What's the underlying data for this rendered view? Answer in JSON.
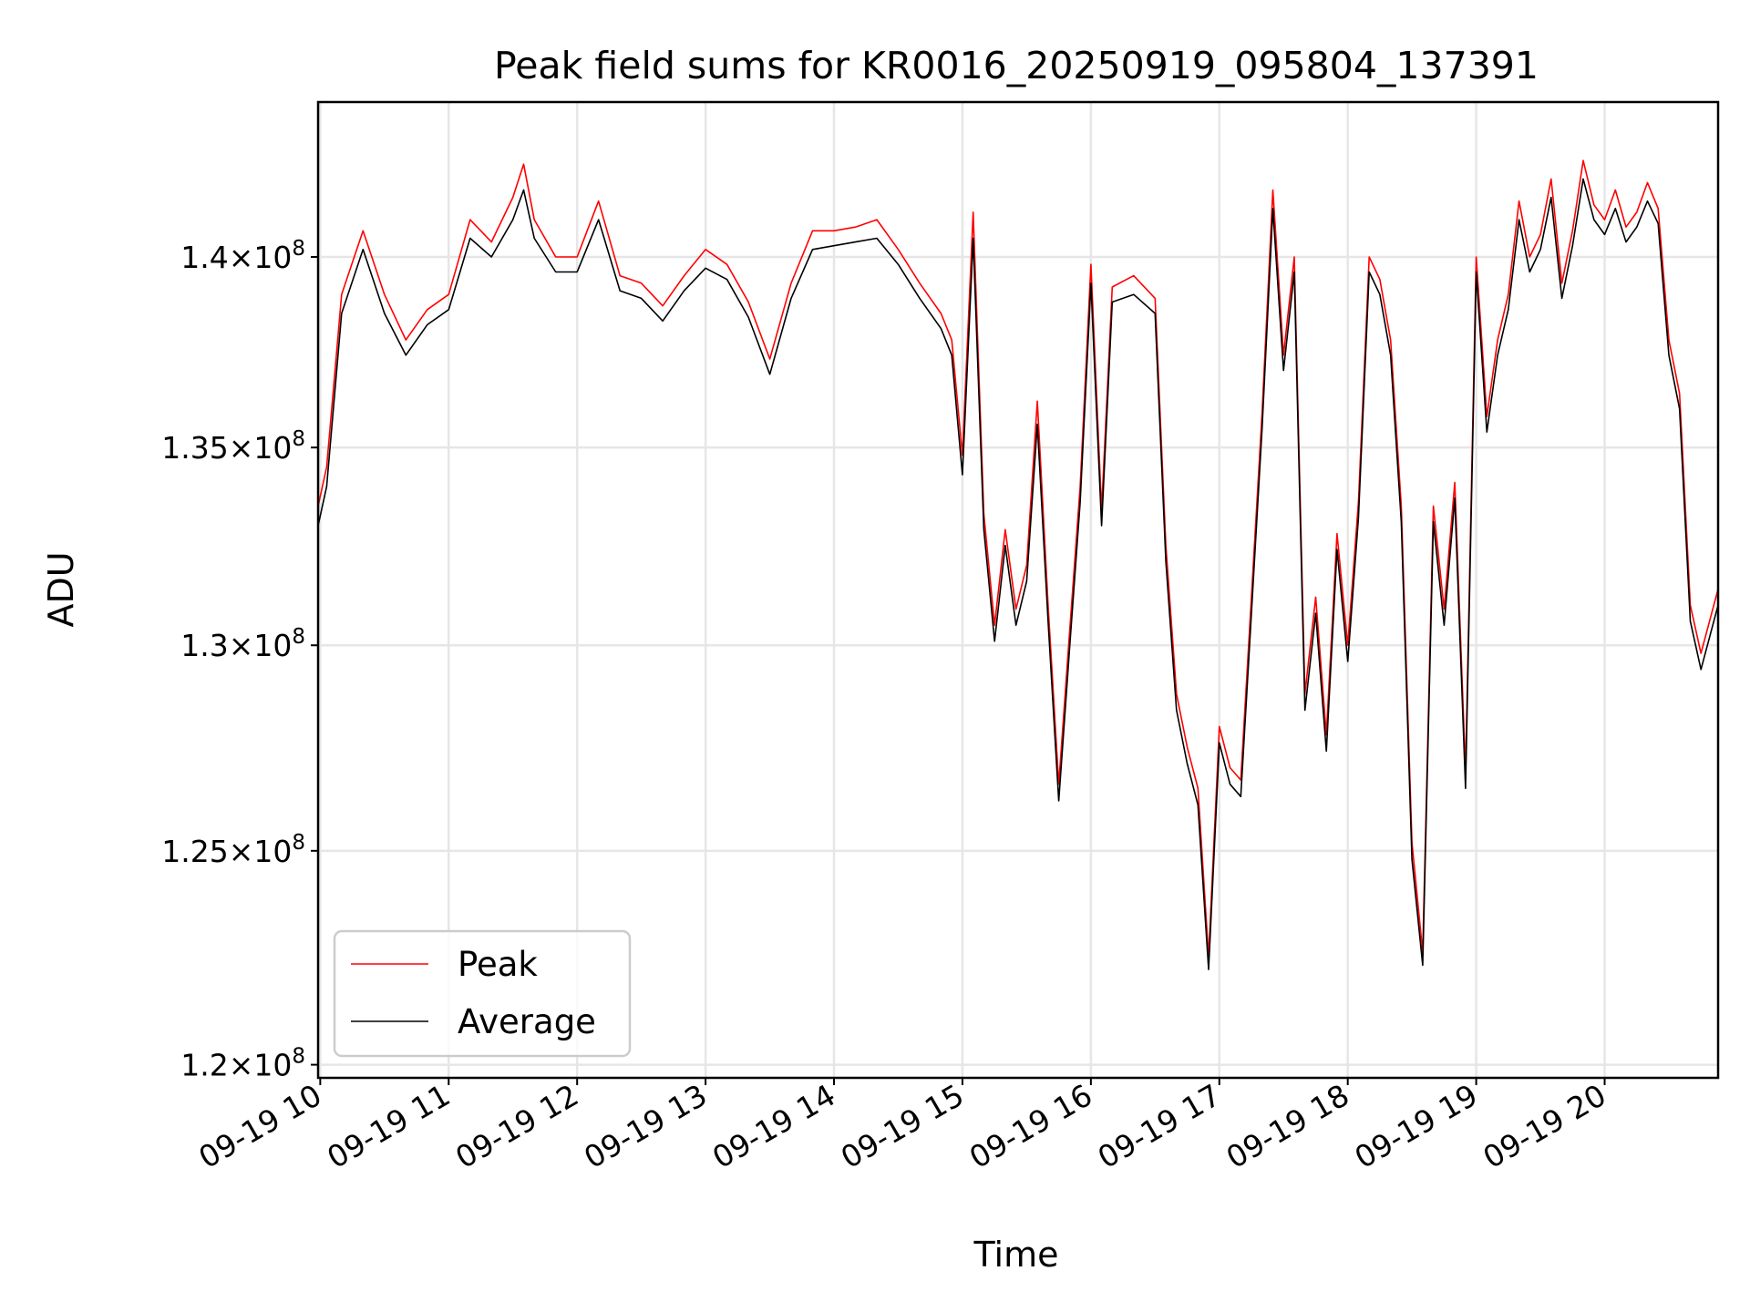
{
  "chart_data": {
    "type": "line",
    "title": "Peak field sums for KR0016_20250919_095804_137391",
    "xlabel": "Time",
    "ylabel": "ADU",
    "y_scale": "log",
    "grid": true,
    "legend_position": "lower-left",
    "xlim": [
      "2025-09-19 09:59",
      "2025-09-19 20:53"
    ],
    "ylim": [
      119700000,
      144200000
    ],
    "x_ticks": [
      "09-19 10",
      "09-19 11",
      "09-19 12",
      "09-19 13",
      "09-19 14",
      "09-19 15",
      "09-19 16",
      "09-19 17",
      "09-19 18",
      "09-19 19",
      "09-19 20"
    ],
    "y_ticks": [
      {
        "value": 120000000,
        "mantissa": "1.2",
        "exponent": "8"
      },
      {
        "value": 125000000,
        "mantissa": "1.25",
        "exponent": "8"
      },
      {
        "value": 130000000,
        "mantissa": "1.3",
        "exponent": "8"
      },
      {
        "value": 135000000,
        "mantissa": "1.35",
        "exponent": "8"
      },
      {
        "value": 140000000,
        "mantissa": "1.4",
        "exponent": "8"
      }
    ],
    "x": [
      "09:59",
      "10:03",
      "10:10",
      "10:20",
      "10:30",
      "10:40",
      "10:50",
      "11:00",
      "11:10",
      "11:20",
      "11:30",
      "11:35",
      "11:40",
      "11:50",
      "12:00",
      "12:10",
      "12:20",
      "12:30",
      "12:40",
      "12:50",
      "13:00",
      "13:10",
      "13:20",
      "13:30",
      "13:40",
      "13:50",
      "14:00",
      "14:10",
      "14:20",
      "14:30",
      "14:40",
      "14:50",
      "14:55",
      "15:00",
      "15:05",
      "15:10",
      "15:15",
      "15:20",
      "15:25",
      "15:30",
      "15:35",
      "15:40",
      "15:45",
      "15:50",
      "15:55",
      "16:00",
      "16:05",
      "16:10",
      "16:20",
      "16:30",
      "16:35",
      "16:40",
      "16:45",
      "16:50",
      "16:55",
      "17:00",
      "17:05",
      "17:10",
      "17:15",
      "17:20",
      "17:25",
      "17:30",
      "17:35",
      "17:40",
      "17:45",
      "17:50",
      "17:55",
      "18:00",
      "18:05",
      "18:10",
      "18:15",
      "18:20",
      "18:25",
      "18:30",
      "18:35",
      "18:40",
      "18:45",
      "18:50",
      "18:55",
      "19:00",
      "19:05",
      "19:10",
      "19:15",
      "19:20",
      "19:25",
      "19:30",
      "19:35",
      "19:40",
      "19:45",
      "19:50",
      "19:55",
      "20:00",
      "20:05",
      "20:10",
      "20:15",
      "20:20",
      "20:25",
      "20:30",
      "20:35",
      "20:40",
      "20:45",
      "20:53"
    ],
    "series": [
      {
        "name": "Peak",
        "color": "#ff0000",
        "values": [
          133500000,
          134500000,
          139000000,
          140700000,
          139000000,
          137800000,
          138600000,
          139000000,
          141000000,
          140400000,
          141600000,
          142500000,
          141000000,
          140000000,
          140000000,
          141500000,
          139500000,
          139300000,
          138700000,
          139500000,
          140200000,
          139800000,
          138800000,
          137300000,
          139300000,
          140700000,
          140700000,
          140800000,
          141000000,
          140200000,
          139300000,
          138500000,
          137800000,
          134800000,
          141200000,
          133300000,
          130500000,
          132900000,
          130900000,
          132000000,
          136200000,
          131000000,
          126600000,
          130300000,
          134000000,
          139800000,
          133400000,
          139200000,
          139500000,
          138900000,
          132500000,
          128800000,
          127500000,
          126500000,
          122500000,
          128000000,
          127000000,
          126700000,
          131200000,
          135900000,
          141800000,
          137400000,
          140000000,
          128800000,
          131200000,
          127800000,
          132800000,
          130000000,
          133600000,
          140000000,
          139400000,
          137800000,
          133500000,
          125200000,
          122600000,
          133500000,
          130900000,
          134100000,
          126900000,
          140000000,
          135800000,
          137800000,
          139000000,
          141500000,
          140000000,
          140600000,
          142100000,
          139300000,
          140700000,
          142600000,
          141400000,
          141000000,
          141800000,
          140800000,
          141200000,
          142000000,
          141300000,
          137800000,
          136400000,
          131000000,
          129800000,
          131400000
        ],
        "label": "Peak"
      },
      {
        "name": "Average",
        "color": "#000000",
        "values": [
          133000000,
          134000000,
          138500000,
          140200000,
          138500000,
          137400000,
          138200000,
          138600000,
          140500000,
          140000000,
          141000000,
          141800000,
          140500000,
          139600000,
          139600000,
          141000000,
          139100000,
          138900000,
          138300000,
          139100000,
          139700000,
          139400000,
          138400000,
          136900000,
          138900000,
          140200000,
          140300000,
          140400000,
          140500000,
          139800000,
          138900000,
          138100000,
          137400000,
          134300000,
          140500000,
          132900000,
          130100000,
          132500000,
          130500000,
          131600000,
          135600000,
          130600000,
          126200000,
          129900000,
          133600000,
          139300000,
          133000000,
          138800000,
          139000000,
          138500000,
          132100000,
          128400000,
          127100000,
          126100000,
          122200000,
          127600000,
          126600000,
          126300000,
          130800000,
          135500000,
          141300000,
          137000000,
          139600000,
          128400000,
          130800000,
          127400000,
          132400000,
          129600000,
          133200000,
          139600000,
          139000000,
          137400000,
          133100000,
          124800000,
          122300000,
          133100000,
          130500000,
          133700000,
          126500000,
          139600000,
          135400000,
          137400000,
          138600000,
          141000000,
          139600000,
          140200000,
          141600000,
          138900000,
          140300000,
          142100000,
          141000000,
          140600000,
          141300000,
          140400000,
          140800000,
          141500000,
          140900000,
          137400000,
          136000000,
          130600000,
          129400000,
          131000000
        ],
        "label": "Average"
      }
    ]
  }
}
